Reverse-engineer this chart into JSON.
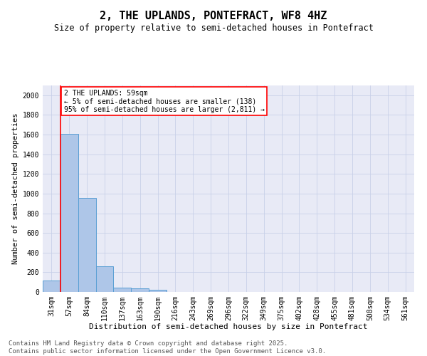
{
  "title": "2, THE UPLANDS, PONTEFRACT, WF8 4HZ",
  "subtitle": "Size of property relative to semi-detached houses in Pontefract",
  "xlabel": "Distribution of semi-detached houses by size in Pontefract",
  "ylabel": "Number of semi-detached properties",
  "categories": [
    "31sqm",
    "57sqm",
    "84sqm",
    "110sqm",
    "137sqm",
    "163sqm",
    "190sqm",
    "216sqm",
    "243sqm",
    "269sqm",
    "296sqm",
    "322sqm",
    "349sqm",
    "375sqm",
    "402sqm",
    "428sqm",
    "455sqm",
    "481sqm",
    "508sqm",
    "534sqm",
    "561sqm"
  ],
  "values": [
    113,
    1610,
    955,
    260,
    40,
    35,
    20,
    0,
    0,
    0,
    0,
    0,
    0,
    0,
    0,
    0,
    0,
    0,
    0,
    0,
    0
  ],
  "bar_color": "#aec6e8",
  "bar_edge_color": "#5a9fd4",
  "vline_color": "red",
  "vline_x_index": 1,
  "annotation_text": "2 THE UPLANDS: 59sqm\n← 5% of semi-detached houses are smaller (138)\n95% of semi-detached houses are larger (2,811) →",
  "annotation_box_color": "white",
  "annotation_border_color": "red",
  "ylim": [
    0,
    2100
  ],
  "yticks": [
    0,
    200,
    400,
    600,
    800,
    1000,
    1200,
    1400,
    1600,
    1800,
    2000
  ],
  "grid_color": "#c8d0e8",
  "background_color": "#e8eaf6",
  "footer_line1": "Contains HM Land Registry data © Crown copyright and database right 2025.",
  "footer_line2": "Contains public sector information licensed under the Open Government Licence v3.0.",
  "title_fontsize": 11,
  "subtitle_fontsize": 8.5,
  "annotation_fontsize": 7,
  "footer_fontsize": 6.5,
  "xlabel_fontsize": 8,
  "ylabel_fontsize": 7.5,
  "tick_fontsize": 7
}
